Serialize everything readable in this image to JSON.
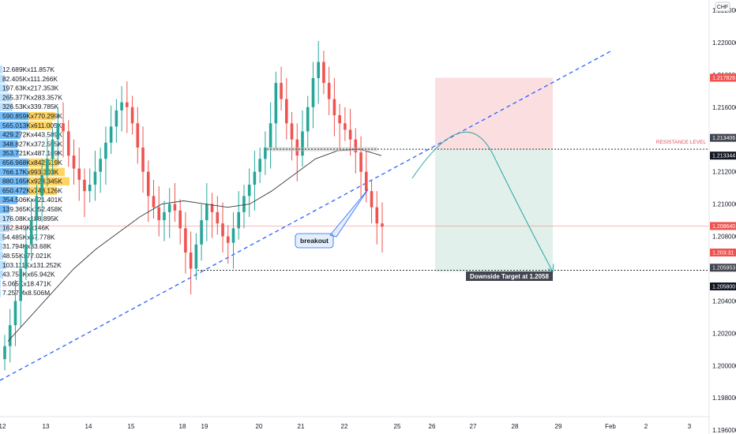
{
  "currency_badge": "CHF",
  "colors": {
    "up": "#26a69a",
    "down": "#ef5350",
    "trendline": "#2962ff",
    "ma": "#3b3b3b",
    "resistance": "#e04f5f",
    "support": "#131722",
    "vp_blue": "#42a5f5",
    "vp_yellow": "#ffc629",
    "target_zone": "#dfeeea",
    "stop_zone": "#fbdadd"
  },
  "annotations": {
    "resistance_label": "RESISTANCE LEVEL",
    "breakout_label": "breakout",
    "target_label": "Downside Target at 1.2058"
  },
  "price_badges": {
    "stop": "1.217826",
    "resistance_a": "1.213406",
    "resistance_b": "1.213344",
    "current": "1.208640",
    "countdown": "1.203:31",
    "support_a": "1.205953",
    "support_b": "1.205800"
  },
  "chart_data": {
    "type": "candlestick",
    "symbol_currency": "CHF",
    "y_axis": {
      "ticks": [
        "1.222000",
        "1.220000",
        "1.218000",
        "1.216000",
        "1.214000",
        "1.212000",
        "1.210000",
        "1.208000",
        "1.206000",
        "1.204000",
        "1.202000",
        "1.200000",
        "1.198000",
        "1.196000"
      ],
      "range": [
        1.1948,
        1.2234
      ]
    },
    "x_axis": {
      "ticks": [
        "12",
        "13",
        "14",
        "15",
        "18",
        "19",
        "20",
        "21",
        "22",
        "25",
        "26",
        "27",
        "28",
        "29",
        "Feb",
        "2",
        "3"
      ]
    },
    "volume_profile_labels": [
      "12.689Kx11.857K",
      "82.405Kx111.266K",
      "197.63Kx217.353K",
      "265.377Kx283.357K",
      "326.53Kx339.785K",
      "590.859Kx770.299K",
      "565.013Kx611.005K",
      "429.272Kx443.589K",
      "348.827Kx372.595K",
      "353.721Kx487.169K",
      "656.968Kx842.519K",
      "766.17Kx993.303K",
      "880.165Kx923.345K",
      "650.472Kx743.126K",
      "354.506Kx421.401K",
      "139.365Kx152.458K",
      "176.08Kx188.895K",
      "162.849Kx146K",
      "54.485Kx67.778K",
      "31.794Kx33.68K",
      "48.55Kx77.021K",
      "103.111Kx131.252K",
      "43.758Kx65.942K",
      "5.065Kx18.471K",
      "7.257Mx8.506M"
    ],
    "series": [
      {
        "kind": "close",
        "values": [
          1.2012,
          1.2025,
          1.204,
          1.206,
          1.2075,
          1.209,
          1.2105,
          1.2118,
          1.2128,
          1.214,
          1.215,
          1.2145,
          1.213,
          1.2122,
          1.2115,
          1.2108,
          1.2112,
          1.212,
          1.2128,
          1.2138,
          1.2148,
          1.2158,
          1.2163,
          1.216,
          1.215,
          1.2135,
          1.212,
          1.2105,
          1.2098,
          1.209,
          1.2095,
          1.21,
          1.2096,
          1.2085,
          1.207,
          1.206,
          1.2075,
          1.209,
          1.21,
          1.2095,
          1.2088,
          1.208,
          1.2076,
          1.2085,
          1.2095,
          1.2105,
          1.2112,
          1.212,
          1.2128,
          1.2135,
          1.215,
          1.2175,
          1.2165,
          1.215,
          1.214,
          1.213,
          1.2145,
          1.216,
          1.2178,
          1.2188,
          1.2175,
          1.2165,
          1.2155,
          1.215,
          1.2146,
          1.214,
          1.2132,
          1.212,
          1.2108,
          1.2098,
          1.2088,
          1.2086
        ]
      },
      {
        "kind": "moving_average",
        "values": [
          1.2015,
          1.203,
          1.2045,
          1.206,
          1.2072,
          1.2082,
          1.2092,
          1.21,
          1.2102,
          1.21,
          1.2098,
          1.21,
          1.2108,
          1.2118,
          1.2128,
          1.2133,
          1.2134,
          1.213
        ]
      }
    ],
    "trendline": {
      "points": [
        [
          1.199
        ],
        [
          1.221
        ]
      ]
    },
    "levels": {
      "resistance": 1.2134,
      "support": 1.2059,
      "stop_top": 1.2178,
      "current": 1.20864
    },
    "projected_path": "curve up to ~1.2134 then down to 1.2058"
  }
}
